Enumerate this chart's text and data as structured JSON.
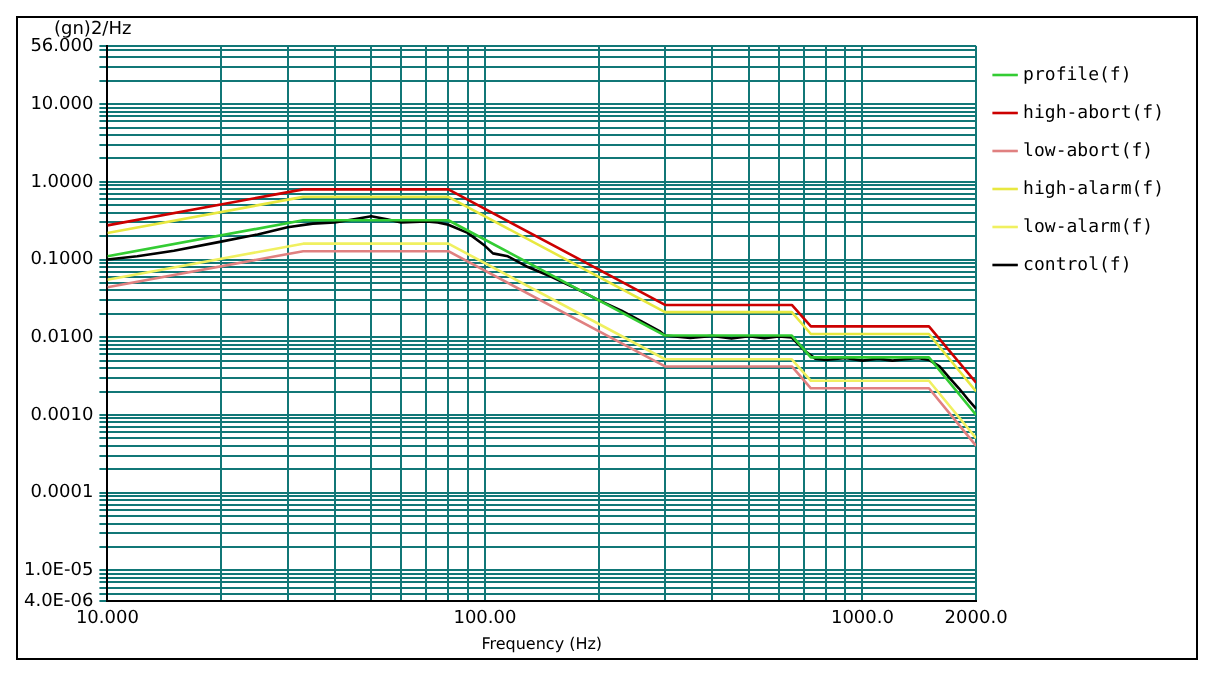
{
  "chart_data": {
    "type": "line",
    "xlabel": "Frequency (Hz)",
    "ylabel": "(gn)2/Hz",
    "log": "xy",
    "grid": true,
    "legend": "right",
    "marker": "none",
    "line_style": "solid",
    "xlim": [
      10,
      2000
    ],
    "ylim": [
      4e-06,
      56
    ],
    "xticks": [
      {
        "value": 10,
        "label": "10.000"
      },
      {
        "value": 20,
        "label": null
      },
      {
        "value": 30,
        "label": null
      },
      {
        "value": 40,
        "label": null
      },
      {
        "value": 50,
        "label": null
      },
      {
        "value": 60,
        "label": null
      },
      {
        "value": 70,
        "label": null
      },
      {
        "value": 80,
        "label": null
      },
      {
        "value": 90,
        "label": null
      },
      {
        "value": 100,
        "label": "100.00"
      },
      {
        "value": 200,
        "label": null
      },
      {
        "value": 300,
        "label": null
      },
      {
        "value": 400,
        "label": null
      },
      {
        "value": 500,
        "label": null
      },
      {
        "value": 600,
        "label": null
      },
      {
        "value": 700,
        "label": null
      },
      {
        "value": 800,
        "label": null
      },
      {
        "value": 900,
        "label": null
      },
      {
        "value": 1000,
        "label": "1000.0"
      },
      {
        "value": 2000,
        "label": "2000.0"
      }
    ],
    "yticks": [
      {
        "value": 4e-06,
        "label": "4.0E-06"
      },
      {
        "value": 5e-06,
        "label": null
      },
      {
        "value": 6e-06,
        "label": null
      },
      {
        "value": 7e-06,
        "label": null
      },
      {
        "value": 8e-06,
        "label": null
      },
      {
        "value": 9e-06,
        "label": null
      },
      {
        "value": 1e-05,
        "label": "1.0E-05"
      },
      {
        "value": 2e-05,
        "label": null
      },
      {
        "value": 3e-05,
        "label": null
      },
      {
        "value": 4e-05,
        "label": null
      },
      {
        "value": 5e-05,
        "label": null
      },
      {
        "value": 6e-05,
        "label": null
      },
      {
        "value": 7e-05,
        "label": null
      },
      {
        "value": 8e-05,
        "label": null
      },
      {
        "value": 9e-05,
        "label": null
      },
      {
        "value": 0.0001,
        "label": "0.0001"
      },
      {
        "value": 0.0002,
        "label": null
      },
      {
        "value": 0.0003,
        "label": null
      },
      {
        "value": 0.0004,
        "label": null
      },
      {
        "value": 0.0005,
        "label": null
      },
      {
        "value": 0.0006,
        "label": null
      },
      {
        "value": 0.0007,
        "label": null
      },
      {
        "value": 0.0008,
        "label": null
      },
      {
        "value": 0.0009,
        "label": null
      },
      {
        "value": 0.001,
        "label": "0.0010"
      },
      {
        "value": 0.002,
        "label": null
      },
      {
        "value": 0.003,
        "label": null
      },
      {
        "value": 0.004,
        "label": null
      },
      {
        "value": 0.005,
        "label": null
      },
      {
        "value": 0.006,
        "label": null
      },
      {
        "value": 0.007,
        "label": null
      },
      {
        "value": 0.008,
        "label": null
      },
      {
        "value": 0.009,
        "label": null
      },
      {
        "value": 0.01,
        "label": "0.0100"
      },
      {
        "value": 0.02,
        "label": null
      },
      {
        "value": 0.03,
        "label": null
      },
      {
        "value": 0.04,
        "label": null
      },
      {
        "value": 0.05,
        "label": null
      },
      {
        "value": 0.06,
        "label": null
      },
      {
        "value": 0.07,
        "label": null
      },
      {
        "value": 0.08,
        "label": null
      },
      {
        "value": 0.09,
        "label": null
      },
      {
        "value": 0.1,
        "label": "0.1000"
      },
      {
        "value": 0.2,
        "label": null
      },
      {
        "value": 0.3,
        "label": null
      },
      {
        "value": 0.4,
        "label": null
      },
      {
        "value": 0.5,
        "label": null
      },
      {
        "value": 0.6,
        "label": null
      },
      {
        "value": 0.7,
        "label": null
      },
      {
        "value": 0.8,
        "label": null
      },
      {
        "value": 0.9,
        "label": null
      },
      {
        "value": 1,
        "label": "1.0000"
      },
      {
        "value": 2,
        "label": null
      },
      {
        "value": 3,
        "label": null
      },
      {
        "value": 4,
        "label": null
      },
      {
        "value": 5,
        "label": null
      },
      {
        "value": 6,
        "label": null
      },
      {
        "value": 7,
        "label": null
      },
      {
        "value": 8,
        "label": null
      },
      {
        "value": 9,
        "label": null
      },
      {
        "value": 10,
        "label": "10.000"
      },
      {
        "value": 20,
        "label": null
      },
      {
        "value": 30,
        "label": null
      },
      {
        "value": 40,
        "label": null
      },
      {
        "value": 50,
        "label": null
      },
      {
        "value": 56,
        "label": "56.000"
      }
    ],
    "x": [
      10,
      33,
      80,
      300,
      650,
      730,
      1500,
      2000
    ],
    "series": [
      {
        "name": "profile(f)",
        "color": "#33cc33",
        "values": [
          0.11,
          0.32,
          0.32,
          0.0105,
          0.0105,
          0.0055,
          0.0055,
          0.001
        ]
      },
      {
        "name": "high-abort(f)",
        "color": "#cc0000",
        "values": [
          0.275,
          0.8,
          0.8,
          0.026,
          0.026,
          0.0138,
          0.0138,
          0.0026
        ]
      },
      {
        "name": "low-abort(f)",
        "color": "#e08080",
        "values": [
          0.044,
          0.128,
          0.128,
          0.0042,
          0.0042,
          0.0022,
          0.0022,
          0.0004
        ]
      },
      {
        "name": "high-alarm(f)",
        "color": "#e8e840",
        "values": [
          0.22,
          0.64,
          0.64,
          0.021,
          0.021,
          0.011,
          0.011,
          0.002
        ]
      },
      {
        "name": "low-alarm(f)",
        "color": "#f0f060",
        "values": [
          0.055,
          0.16,
          0.16,
          0.0052,
          0.0052,
          0.00275,
          0.00275,
          0.0005
        ]
      },
      {
        "name": "control(f)",
        "color": "#000000",
        "x": [
          10,
          12,
          15,
          20,
          25,
          30,
          35,
          40,
          45,
          50,
          55,
          60,
          70,
          75,
          80,
          90,
          100,
          105,
          115,
          130,
          150,
          170,
          200,
          230,
          260,
          290,
          300,
          350,
          400,
          450,
          500,
          550,
          600,
          650,
          700,
          750,
          800,
          900,
          1000,
          1100,
          1200,
          1300,
          1400,
          1500,
          1600,
          1700,
          1800,
          1900,
          2000
        ],
        "values": [
          0.1,
          0.11,
          0.13,
          0.17,
          0.21,
          0.26,
          0.29,
          0.3,
          0.33,
          0.36,
          0.33,
          0.3,
          0.31,
          0.3,
          0.28,
          0.22,
          0.15,
          0.12,
          0.11,
          0.08,
          0.06,
          0.045,
          0.03,
          0.022,
          0.016,
          0.012,
          0.0105,
          0.0098,
          0.0104,
          0.0096,
          0.0103,
          0.0097,
          0.0102,
          0.0099,
          0.0068,
          0.0053,
          0.0051,
          0.0054,
          0.005,
          0.0053,
          0.005,
          0.0052,
          0.0054,
          0.0051,
          0.0042,
          0.003,
          0.0022,
          0.0016,
          0.0012
        ]
      }
    ]
  }
}
